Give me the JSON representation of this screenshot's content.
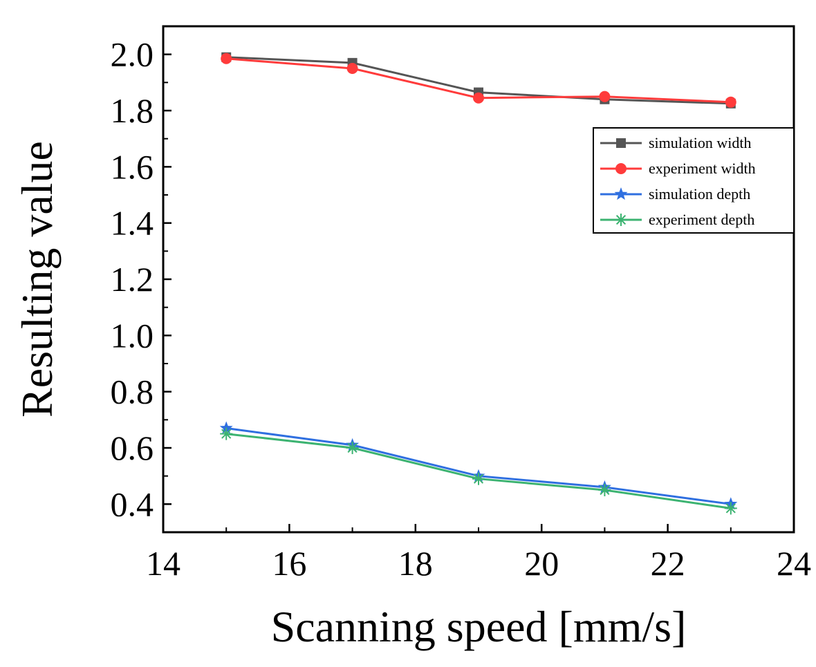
{
  "chart_data": {
    "type": "line",
    "title": "",
    "xlabel": "Scanning speed [mm/s]",
    "ylabel": "Resulting value",
    "xlim": [
      14,
      24
    ],
    "ylim": [
      0.3,
      2.1
    ],
    "xticks": [
      14,
      16,
      18,
      20,
      22,
      24
    ],
    "xtick_labels": [
      "14",
      "16",
      "18",
      "20",
      "22",
      "24"
    ],
    "yticks": [
      0.4,
      0.6,
      0.8,
      1.0,
      1.2,
      1.4,
      1.6,
      1.8,
      2.0
    ],
    "ytick_labels": [
      "0.4",
      "0.6",
      "0.8",
      "1.0",
      "1.2",
      "1.4",
      "1.6",
      "1.8",
      "2.0"
    ],
    "grid": false,
    "legend_position": "right",
    "x": [
      15,
      17,
      19,
      21,
      23
    ],
    "series": [
      {
        "name": "simulation width",
        "color": "#555555",
        "marker": "square",
        "values": [
          1.99,
          1.97,
          1.865,
          1.84,
          1.825
        ]
      },
      {
        "name": "experiment width",
        "color": "#ff3b3b",
        "marker": "circle",
        "values": [
          1.985,
          1.95,
          1.845,
          1.85,
          1.83
        ]
      },
      {
        "name": "simulation depth",
        "color": "#2f6fe0",
        "marker": "star",
        "values": [
          0.67,
          0.61,
          0.5,
          0.46,
          0.4
        ]
      },
      {
        "name": "experiment depth",
        "color": "#3cb371",
        "marker": "asterisk",
        "values": [
          0.65,
          0.6,
          0.49,
          0.45,
          0.385
        ]
      }
    ]
  }
}
